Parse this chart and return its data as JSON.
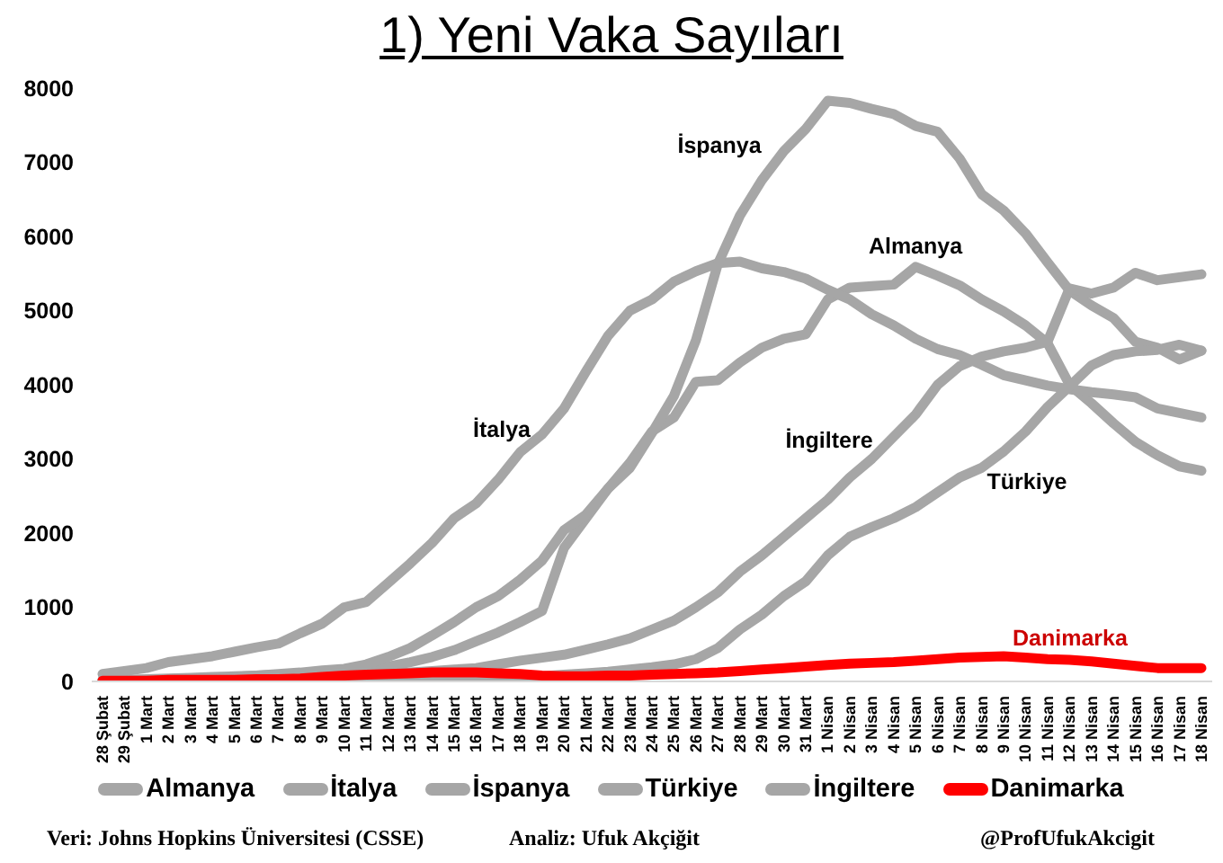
{
  "chart_data": {
    "type": "line",
    "title": "1) Yeni Vaka Sayıları",
    "categories": [
      "28 Şubat",
      "29 Şubat",
      "1 Mart",
      "2 Mart",
      "3 Mart",
      "4 Mart",
      "5 Mart",
      "6 Mart",
      "7 Mart",
      "8 Mart",
      "9 Mart",
      "10 Mart",
      "11 Mart",
      "12 Mart",
      "13 Mart",
      "14 Mart",
      "15 Mart",
      "16 Mart",
      "17 Mart",
      "18 Mart",
      "19 Mart",
      "20 Mart",
      "21 Mart",
      "22 Mart",
      "23 Mart",
      "24 Mart",
      "25 Mart",
      "26 Mart",
      "27 Mart",
      "28 Mart",
      "29 Mart",
      "30 Mart",
      "31 Mart",
      "1 Nisan",
      "2 Nisan",
      "3 Nisan",
      "4 Nisan",
      "5 Nisan",
      "6 Nisan",
      "7 Nisan",
      "8 Nisan",
      "9 Nisan",
      "10 Nisan",
      "11 Nisan",
      "12 Nisan",
      "13 Nisan",
      "14 Nisan",
      "15 Nisan",
      "16 Nisan",
      "17 Nisan",
      "18 Nisan"
    ],
    "series": [
      {
        "name": "Almanya",
        "color": "#a6a6a6",
        "values": [
          20,
          20,
          30,
          40,
          50,
          60,
          70,
          80,
          90,
          100,
          120,
          140,
          170,
          200,
          260,
          330,
          420,
          540,
          660,
          800,
          950,
          1800,
          2200,
          2600,
          2950,
          3370,
          3560,
          4040,
          4060,
          4300,
          4500,
          4620,
          4680,
          5150,
          5310,
          5330,
          5350,
          5590,
          5470,
          5340,
          5150,
          4990,
          4800,
          4560,
          4000,
          3750,
          3480,
          3230,
          3050,
          2900,
          2840
        ]
      },
      {
        "name": "İtalya",
        "color": "#a6a6a6",
        "values": [
          100,
          140,
          180,
          260,
          300,
          340,
          400,
          460,
          510,
          650,
          780,
          1000,
          1070,
          1330,
          1590,
          1870,
          2200,
          2400,
          2720,
          3090,
          3330,
          3680,
          4180,
          4660,
          5000,
          5150,
          5390,
          5530,
          5640,
          5660,
          5570,
          5520,
          5430,
          5280,
          5150,
          4950,
          4800,
          4620,
          4480,
          4400,
          4270,
          4130,
          4060,
          3990,
          3940,
          3900,
          3870,
          3830,
          3680,
          3620,
          3560
        ]
      },
      {
        "name": "İspanya",
        "color": "#a6a6a6",
        "values": [
          10,
          10,
          20,
          30,
          40,
          50,
          60,
          80,
          100,
          120,
          150,
          170,
          230,
          330,
          450,
          620,
          800,
          1000,
          1150,
          1370,
          1630,
          2040,
          2250,
          2600,
          2880,
          3350,
          3850,
          4600,
          5630,
          6280,
          6760,
          7150,
          7450,
          7830,
          7800,
          7720,
          7650,
          7490,
          7410,
          7050,
          6570,
          6350,
          6040,
          5650,
          5270,
          5070,
          4900,
          4580,
          4500,
          4340,
          4460
        ]
      },
      {
        "name": "Türkiye",
        "color": "#a6a6a6",
        "values": [
          0,
          0,
          0,
          0,
          0,
          0,
          0,
          0,
          0,
          0,
          0,
          0,
          0,
          10,
          10,
          20,
          20,
          30,
          40,
          50,
          70,
          90,
          110,
          130,
          160,
          190,
          230,
          300,
          450,
          700,
          900,
          1150,
          1350,
          1700,
          1950,
          2080,
          2200,
          2350,
          2550,
          2750,
          2880,
          3100,
          3370,
          3700,
          3980,
          4260,
          4400,
          4450,
          4470,
          4540,
          4460
        ]
      },
      {
        "name": "İngiltere",
        "color": "#a6a6a6",
        "values": [
          10,
          10,
          10,
          10,
          20,
          20,
          30,
          30,
          40,
          50,
          60,
          70,
          80,
          100,
          120,
          140,
          160,
          180,
          230,
          280,
          320,
          360,
          430,
          500,
          580,
          700,
          820,
          1000,
          1200,
          1480,
          1700,
          1950,
          2200,
          2450,
          2750,
          3000,
          3300,
          3600,
          4000,
          4250,
          4380,
          4450,
          4500,
          4580,
          5300,
          5230,
          5310,
          5510,
          5410,
          5450,
          5490
        ]
      },
      {
        "name": "Danimarka",
        "color": "#ff0000",
        "values": [
          10,
          10,
          10,
          20,
          20,
          20,
          20,
          30,
          30,
          40,
          60,
          80,
          90,
          100,
          110,
          120,
          120,
          120,
          110,
          100,
          80,
          70,
          70,
          80,
          80,
          90,
          100,
          110,
          120,
          140,
          160,
          180,
          200,
          220,
          240,
          250,
          260,
          280,
          300,
          320,
          330,
          340,
          320,
          300,
          290,
          270,
          240,
          210,
          180,
          180,
          180
        ]
      }
    ],
    "ylim": [
      0,
      8000
    ],
    "yticks": [
      0,
      1000,
      2000,
      3000,
      4000,
      5000,
      6000,
      7000,
      8000
    ],
    "legend": "bottom",
    "annotations": [
      "Veri: Johns Hopkins Üniversitesi (CSSE)",
      "Analiz: Ufuk Akçiğit",
      "@ProfUfukAkcigit"
    ]
  }
}
